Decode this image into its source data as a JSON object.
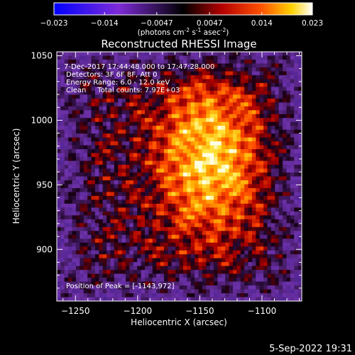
{
  "colorbar": {
    "ticks": [
      "-0.023",
      "-0.014",
      "-0.0047",
      "0.0047",
      "0.014",
      "0.023"
    ],
    "units_main": "(photons cm",
    "units_exp1": "-2",
    "units_mid1": " s",
    "units_exp2": "-1",
    "units_mid2": " asec",
    "units_exp3": "-2",
    "units_end": ")"
  },
  "chart_data": {
    "type": "heatmap",
    "title": "Reconstructed RHESSI Image",
    "xlabel": "Heliocentric X (arcsec)",
    "ylabel": "Heliocentric Y (arcsec)",
    "xlim": [
      -1265,
      -1068
    ],
    "ylim": [
      860,
      1053
    ],
    "xticks": [
      -1250,
      -1200,
      -1150,
      -1100
    ],
    "yticks": [
      900,
      950,
      1000,
      1050
    ],
    "xtick_labels": [
      "−1250",
      "−1200",
      "−1150",
      "−1100"
    ],
    "ytick_labels": [
      "900",
      "950",
      "1000",
      "1050"
    ],
    "color_range": [
      -0.023,
      0.023
    ],
    "peak": [
      -1143,
      972
    ],
    "annotations": [
      "7-Dec-2017 17:44:48.000 to 17:47:28.000",
      "Detectors: 3F 6F 8F, Att 0",
      "Energy Range: 6.0 - 12.0 keV",
      "Clean     Total counts: 7.97E+03"
    ],
    "peak_label": "Position of Peak = [-1143,972]"
  },
  "footer": {
    "timestamp": "5-Sep-2022 19:31"
  }
}
